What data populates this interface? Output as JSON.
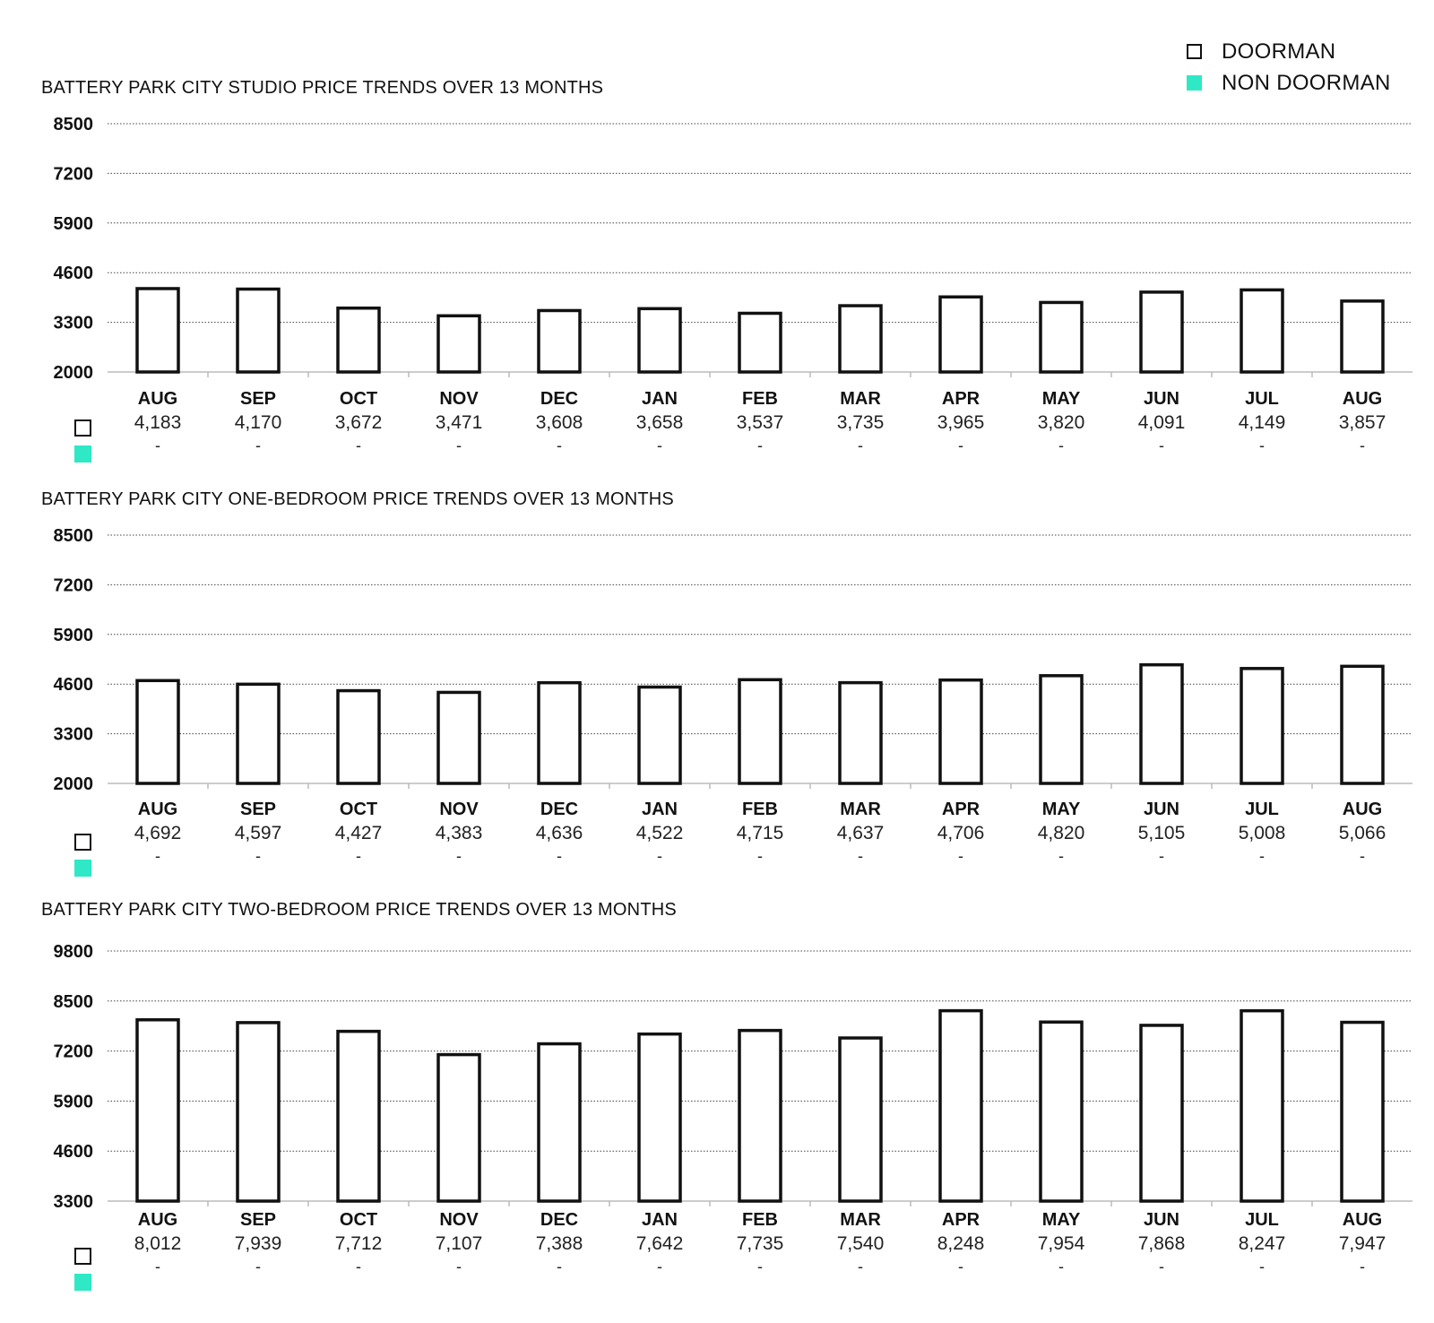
{
  "legend": [
    {
      "label": "DOORMAN",
      "color": "#ffffff",
      "stroke": "#111111"
    },
    {
      "label": "NON DOORMAN",
      "color": "#2fe8c6",
      "stroke": "#2fe8c6"
    }
  ],
  "colors": {
    "doorman_fill": "#ffffff",
    "bar_stroke": "#111111",
    "non_doorman": "#2fe8c6",
    "grid": "#444444",
    "axis": "#bbbbbb"
  },
  "chart_data": [
    {
      "type": "bar",
      "title": "BATTERY PARK CITY STUDIO PRICE TRENDS OVER 13 MONTHS",
      "categories": [
        "AUG",
        "SEP",
        "OCT",
        "NOV",
        "DEC",
        "JAN",
        "FEB",
        "MAR",
        "APR",
        "MAY",
        "JUN",
        "JUL",
        "AUG"
      ],
      "yticks": [
        2000,
        3300,
        4600,
        5900,
        7200,
        8500
      ],
      "ylim": [
        2000,
        8500
      ],
      "grid": true,
      "series": [
        {
          "name": "DOORMAN",
          "values": [
            4183,
            4170,
            3672,
            3471,
            3608,
            3658,
            3537,
            3735,
            3965,
            3820,
            4091,
            4149,
            3857
          ],
          "labels": [
            "4,183",
            "4,170",
            "3,672",
            "3,471",
            "3,608",
            "3,658",
            "3,537",
            "3,735",
            "3,965",
            "3,820",
            "4,091",
            "4,149",
            "3,857"
          ]
        },
        {
          "name": "NON DOORMAN",
          "values": [
            null,
            null,
            null,
            null,
            null,
            null,
            null,
            null,
            null,
            null,
            null,
            null,
            null
          ],
          "labels": [
            "-",
            "-",
            "-",
            "-",
            "-",
            "-",
            "-",
            "-",
            "-",
            "-",
            "-",
            "-",
            "-"
          ]
        }
      ]
    },
    {
      "type": "bar",
      "title": "BATTERY PARK CITY ONE-BEDROOM PRICE TRENDS OVER 13 MONTHS",
      "categories": [
        "AUG",
        "SEP",
        "OCT",
        "NOV",
        "DEC",
        "JAN",
        "FEB",
        "MAR",
        "APR",
        "MAY",
        "JUN",
        "JUL",
        "AUG"
      ],
      "yticks": [
        2000,
        3300,
        4600,
        5900,
        7200,
        8500
      ],
      "ylim": [
        2000,
        8500
      ],
      "grid": true,
      "series": [
        {
          "name": "DOORMAN",
          "values": [
            4692,
            4597,
            4427,
            4383,
            4636,
            4522,
            4715,
            4637,
            4706,
            4820,
            5105,
            5008,
            5066
          ],
          "labels": [
            "4,692",
            "4,597",
            "4,427",
            "4,383",
            "4,636",
            "4,522",
            "4,715",
            "4,637",
            "4,706",
            "4,820",
            "5,105",
            "5,008",
            "5,066"
          ]
        },
        {
          "name": "NON DOORMAN",
          "values": [
            null,
            null,
            null,
            null,
            null,
            null,
            null,
            null,
            null,
            null,
            null,
            null,
            null
          ],
          "labels": [
            "-",
            "-",
            "-",
            "-",
            "-",
            "-",
            "-",
            "-",
            "-",
            "-",
            "-",
            "-",
            "-"
          ]
        }
      ]
    },
    {
      "type": "bar",
      "title": "BATTERY PARK CITY TWO-BEDROOM PRICE TRENDS OVER 13 MONTHS",
      "categories": [
        "AUG",
        "SEP",
        "OCT",
        "NOV",
        "DEC",
        "JAN",
        "FEB",
        "MAR",
        "APR",
        "MAY",
        "JUN",
        "JUL",
        "AUG"
      ],
      "yticks": [
        3300,
        4600,
        5900,
        7200,
        8500,
        9800
      ],
      "ylim": [
        3300,
        9800
      ],
      "grid": true,
      "series": [
        {
          "name": "DOORMAN",
          "values": [
            8012,
            7939,
            7712,
            7107,
            7388,
            7642,
            7735,
            7540,
            8248,
            7954,
            7868,
            8247,
            7947
          ],
          "labels": [
            "8,012",
            "7,939",
            "7,712",
            "7,107",
            "7,388",
            "7,642",
            "7,735",
            "7,540",
            "8,248",
            "7,954",
            "7,868",
            "8,247",
            "7,947"
          ]
        },
        {
          "name": "NON DOORMAN",
          "values": [
            null,
            null,
            null,
            null,
            null,
            null,
            null,
            null,
            null,
            null,
            null,
            null,
            null
          ],
          "labels": [
            "-",
            "-",
            "-",
            "-",
            "-",
            "-",
            "-",
            "-",
            "-",
            "-",
            "-",
            "-",
            "-"
          ]
        }
      ]
    }
  ]
}
